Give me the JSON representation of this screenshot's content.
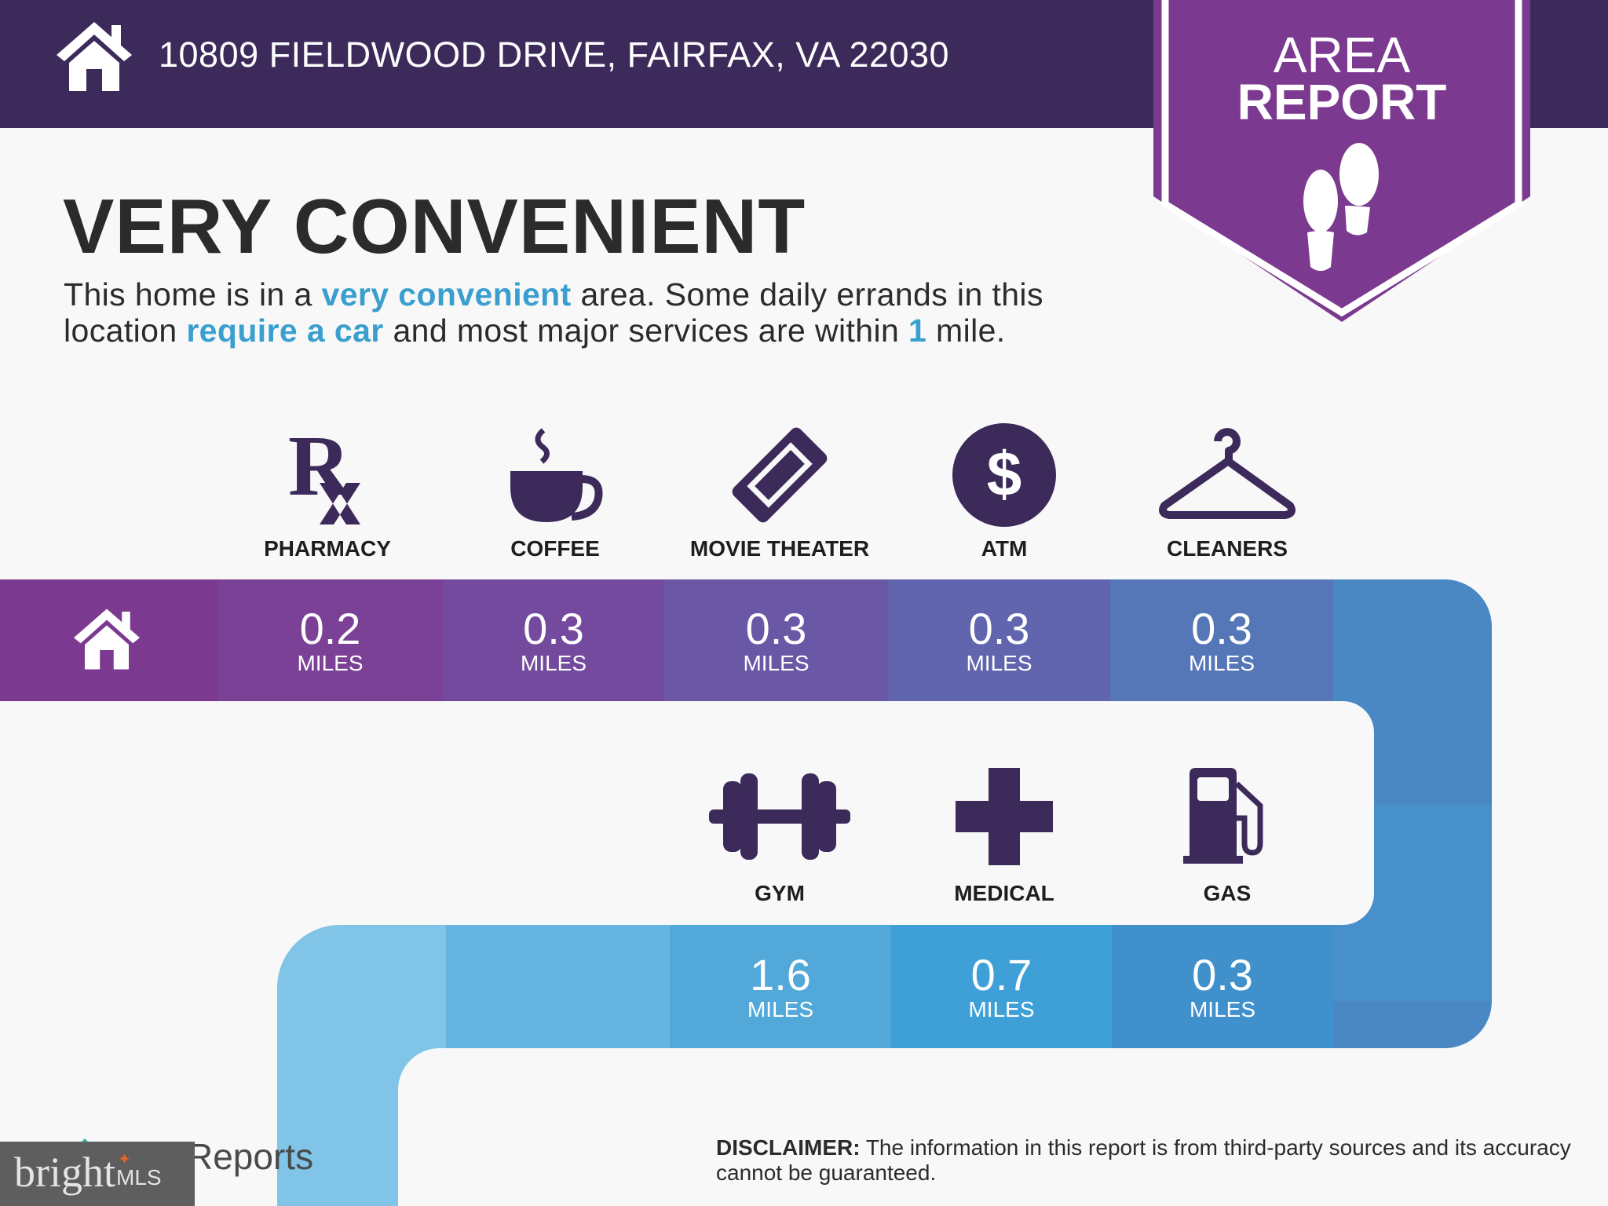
{
  "header": {
    "address": "10809 FIELDWOOD DRIVE, FAIRFAX, VA 22030",
    "home_icon": "house-icon"
  },
  "badge": {
    "line1": "AREA",
    "line2": "REPORT",
    "icon": "footprints-icon"
  },
  "title": "VERY CONVENIENT",
  "description": {
    "l1_a": "This home is in a ",
    "l1_hl": "very convenient",
    "l1_b": " area. Some daily errands in this",
    "l2_a": "location ",
    "l2_hl": "require a car",
    "l2_b": " and most major services are within ",
    "l2_hl2": "1",
    "l2_c": " mile."
  },
  "colors": {
    "header": "#3b2a5a",
    "badge": "#7b3a8f",
    "accent": "#3a9fcf",
    "icon": "#3b2a5a"
  },
  "row1": [
    {
      "label": "PHARMACY",
      "icon": "rx-icon",
      "distance": "0.2",
      "unit": "MILES"
    },
    {
      "label": "COFFEE",
      "icon": "coffee-cup-icon",
      "distance": "0.3",
      "unit": "MILES"
    },
    {
      "label": "MOVIE THEATER",
      "icon": "ticket-icon",
      "distance": "0.3",
      "unit": "MILES"
    },
    {
      "label": "ATM",
      "icon": "dollar-icon",
      "distance": "0.3",
      "unit": "MILES"
    },
    {
      "label": "CLEANERS",
      "icon": "hanger-icon",
      "distance": "0.3",
      "unit": "MILES"
    }
  ],
  "row2": [
    {
      "label": "GYM",
      "icon": "dumbbell-icon",
      "distance": "1.6",
      "unit": "MILES"
    },
    {
      "label": "MEDICAL",
      "icon": "medical-cross-icon",
      "distance": "0.7",
      "unit": "MILES"
    },
    {
      "label": "GAS",
      "icon": "gas-pump-icon",
      "distance": "0.3",
      "unit": "MILES"
    }
  ],
  "disclaimer": {
    "bold": "DISCLAIMER:",
    "text": " The information in this report is from third-party sources and its accuracy cannot be guaranteed."
  },
  "footer": {
    "reports_text": "Reports",
    "mls_logo": "bright MLS"
  }
}
